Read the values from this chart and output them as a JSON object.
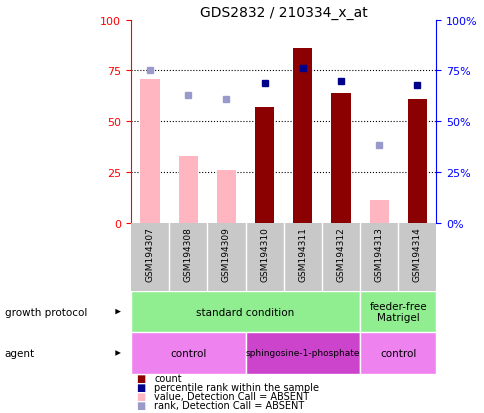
{
  "title": "GDS2832 / 210334_x_at",
  "samples": [
    "GSM194307",
    "GSM194308",
    "GSM194309",
    "GSM194310",
    "GSM194311",
    "GSM194312",
    "GSM194313",
    "GSM194314"
  ],
  "count_values": [
    71,
    33,
    26,
    57,
    86,
    64,
    11,
    61
  ],
  "count_absent": [
    true,
    true,
    true,
    false,
    false,
    false,
    true,
    false
  ],
  "percentile_rank": [
    75,
    63,
    61,
    69,
    76,
    70,
    38,
    68
  ],
  "percentile_absent": [
    true,
    true,
    true,
    false,
    false,
    false,
    true,
    false
  ],
  "bar_color_present": "#8B0000",
  "bar_color_absent": "#FFB6C1",
  "dot_color_present": "#00008B",
  "dot_color_absent": "#9999CC",
  "growth_color_standard": "#90EE90",
  "growth_color_feeder": "#90EE90",
  "agent_color_control_light": "#EE82EE",
  "agent_color_sphingo": "#CC44CC",
  "ylim": [
    0,
    100
  ],
  "yticks_left": [
    0,
    25,
    50,
    75,
    100
  ],
  "ytick_labels_right": [
    "0%",
    "25%",
    "50%",
    "75%",
    "100%"
  ],
  "figsize": [
    4.85,
    4.14
  ],
  "dpi": 100,
  "title_fontsize": 10,
  "legend_items": [
    {
      "color": "#8B0000",
      "label": "count"
    },
    {
      "color": "#00008B",
      "label": "percentile rank within the sample"
    },
    {
      "color": "#FFB6C1",
      "label": "value, Detection Call = ABSENT"
    },
    {
      "color": "#9999CC",
      "label": "rank, Detection Call = ABSENT"
    }
  ]
}
